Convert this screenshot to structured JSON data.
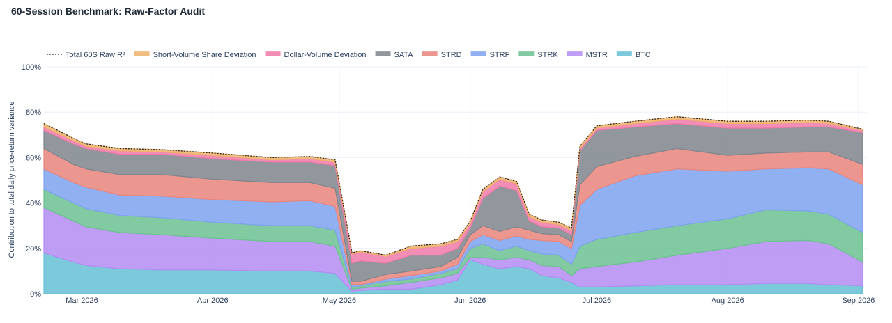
{
  "page": {
    "title": "60-Session Benchmark: Raw-Factor Audit"
  },
  "chart_data": {
    "type": "area",
    "stacked": true,
    "title": "60-Session Benchmark: Raw-Factor Audit",
    "ylabel": "Contribution to total daily price-return variance",
    "xlabel": "",
    "ylim": [
      0,
      100
    ],
    "y_unit": "%",
    "y_ticks": [
      "0%",
      "20%",
      "40%",
      "60%",
      "80%",
      "100%"
    ],
    "x_ticks": [
      {
        "date": "2026-03-01",
        "label": "Mar 2026"
      },
      {
        "date": "2026-04-01",
        "label": "Apr 2026"
      },
      {
        "date": "2026-05-01",
        "label": "May 2026"
      },
      {
        "date": "2026-06-01",
        "label": "Jun 2026"
      },
      {
        "date": "2026-07-01",
        "label": "Jul 2026"
      },
      {
        "date": "2026-08-01",
        "label": "Aug 2026"
      },
      {
        "date": "2026-09-01",
        "label": "Sep 2026"
      }
    ],
    "xlim": [
      "2026-02-20",
      "2026-09-03"
    ],
    "x": [
      "2026-02-20",
      "2026-02-27",
      "2026-03-02",
      "2026-03-10",
      "2026-03-20",
      "2026-04-01",
      "2026-04-15",
      "2026-04-24",
      "2026-04-30",
      "2026-05-04",
      "2026-05-06",
      "2026-05-12",
      "2026-05-18",
      "2026-05-25",
      "2026-05-29",
      "2026-06-01",
      "2026-06-04",
      "2026-06-08",
      "2026-06-12",
      "2026-06-15",
      "2026-06-18",
      "2026-06-22",
      "2026-06-25",
      "2026-06-27",
      "2026-07-01",
      "2026-07-10",
      "2026-07-20",
      "2026-08-01",
      "2026-08-10",
      "2026-08-20",
      "2026-08-25",
      "2026-09-02"
    ],
    "legend_position": "top-left",
    "series": [
      {
        "name": "BTC",
        "color": "#66bfd6",
        "values": [
          18,
          14,
          12.5,
          11,
          10.5,
          10.5,
          10,
          10,
          9,
          1,
          1.5,
          2,
          2,
          4,
          6,
          15,
          13,
          11,
          12,
          11,
          8,
          7,
          5,
          3,
          3,
          3.5,
          4,
          4,
          4.5,
          4.5,
          4,
          3.5
        ]
      },
      {
        "name": "MSTR",
        "color": "#b48cf2",
        "values": [
          20,
          18,
          17,
          16,
          15.5,
          14,
          13,
          13,
          12,
          1,
          1,
          1.5,
          3,
          3,
          3,
          1,
          3,
          4,
          4,
          4,
          4.5,
          5,
          3,
          8,
          9,
          10.5,
          13,
          16,
          18.5,
          19,
          18,
          10.5
        ]
      },
      {
        "name": "STRK",
        "color": "#6cc190",
        "values": [
          8,
          8,
          8,
          7.5,
          7.5,
          7,
          7,
          7,
          7,
          1,
          1,
          2,
          1.5,
          2,
          2,
          4,
          6,
          4,
          5,
          4,
          5,
          5,
          5,
          10,
          12,
          13,
          13,
          13,
          14,
          13,
          13,
          13
        ]
      },
      {
        "name": "STRF",
        "color": "#7ea2f0",
        "values": [
          9,
          9,
          9.5,
          9,
          9.5,
          10,
          10.5,
          11,
          10.5,
          1,
          0.5,
          1,
          1.5,
          1,
          2,
          3,
          4,
          4.5,
          4.5,
          5,
          6,
          6,
          7,
          18,
          22,
          25,
          25,
          21,
          18,
          19,
          20,
          21
        ]
      },
      {
        "name": "STRD",
        "color": "#e8857c",
        "values": [
          9,
          8,
          8,
          9,
          9.5,
          9,
          8.5,
          8,
          8,
          1.5,
          1.5,
          2,
          2,
          2,
          3,
          3,
          4,
          4,
          4,
          4,
          3,
          3,
          3,
          9,
          10,
          8.5,
          9,
          7,
          7,
          7,
          7.5,
          9
        ]
      },
      {
        "name": "SATA",
        "color": "#7f858d",
        "values": [
          8,
          9,
          9,
          9,
          9,
          9,
          9,
          9,
          10,
          8,
          9,
          5,
          7,
          5,
          4,
          3,
          12,
          20,
          16,
          4,
          3,
          3,
          3,
          15,
          16,
          13,
          11,
          12,
          11,
          11,
          11,
          14
        ]
      },
      {
        "name": "Dollar-Volume Deviation",
        "color": "#f07aa8",
        "values": [
          1.5,
          1.5,
          1,
          1.5,
          1,
          1.5,
          1,
          1.5,
          1.5,
          4,
          4,
          3,
          3,
          4,
          3,
          2,
          3,
          3,
          3,
          2,
          2,
          1.5,
          2,
          1,
          1,
          1.5,
          2,
          2,
          2,
          2,
          1.5,
          1
        ]
      },
      {
        "name": "Short-Volume Share Deviation",
        "color": "#efb26b",
        "values": [
          1.5,
          1,
          1,
          1,
          1,
          1,
          1,
          1,
          1,
          0.5,
          0.5,
          0.5,
          1,
          1,
          1,
          1,
          1,
          1,
          1,
          1,
          1,
          1,
          1,
          1,
          1,
          1,
          1,
          1,
          1,
          1,
          1,
          0.5
        ]
      }
    ],
    "total_line": {
      "name": "Total 60S Raw R²",
      "style": "dotted",
      "color": "#222222"
    },
    "legend_order": [
      "Total 60S Raw R²",
      "Short-Volume Share Deviation",
      "Dollar-Volume Deviation",
      "SATA",
      "STRD",
      "STRF",
      "STRK",
      "MSTR",
      "BTC"
    ]
  }
}
